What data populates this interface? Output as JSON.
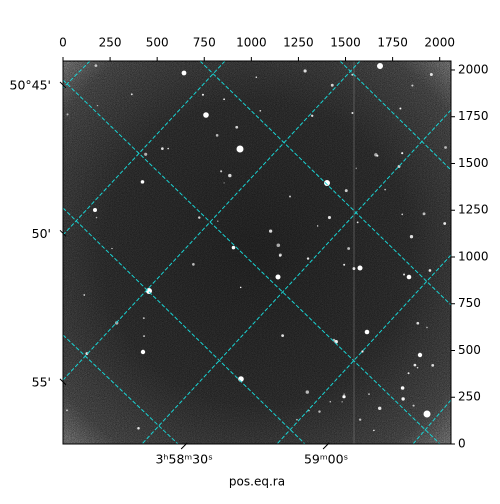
{
  "chart_data": {
    "type": "image",
    "xlabel": "pos.eq.ra",
    "xlim": [
      0,
      2060
    ],
    "ylim": [
      0,
      2048
    ],
    "xticks": [
      0,
      250,
      500,
      750,
      1000,
      1250,
      1500,
      1750,
      2000
    ],
    "yticks": [
      0,
      250,
      500,
      750,
      1000,
      1250,
      1500,
      1750,
      2000
    ],
    "ra_lim": [
      14284.4,
      14366.4
    ],
    "ra_ticks": [
      {
        "value": 14310,
        "label": "3ʰ58ᵐ30ˢ"
      },
      {
        "value": 14340,
        "label": "59ᵐ00ˢ"
      }
    ],
    "dec_lim": [
      50.736,
      50.951
    ],
    "dec_ticks": [
      {
        "value": 50.75,
        "label": "50°45'"
      },
      {
        "value": 50.8333,
        "label": "50'"
      },
      {
        "value": 50.9167,
        "label": "55'"
      }
    ],
    "grid_color": "#19d3d3"
  }
}
